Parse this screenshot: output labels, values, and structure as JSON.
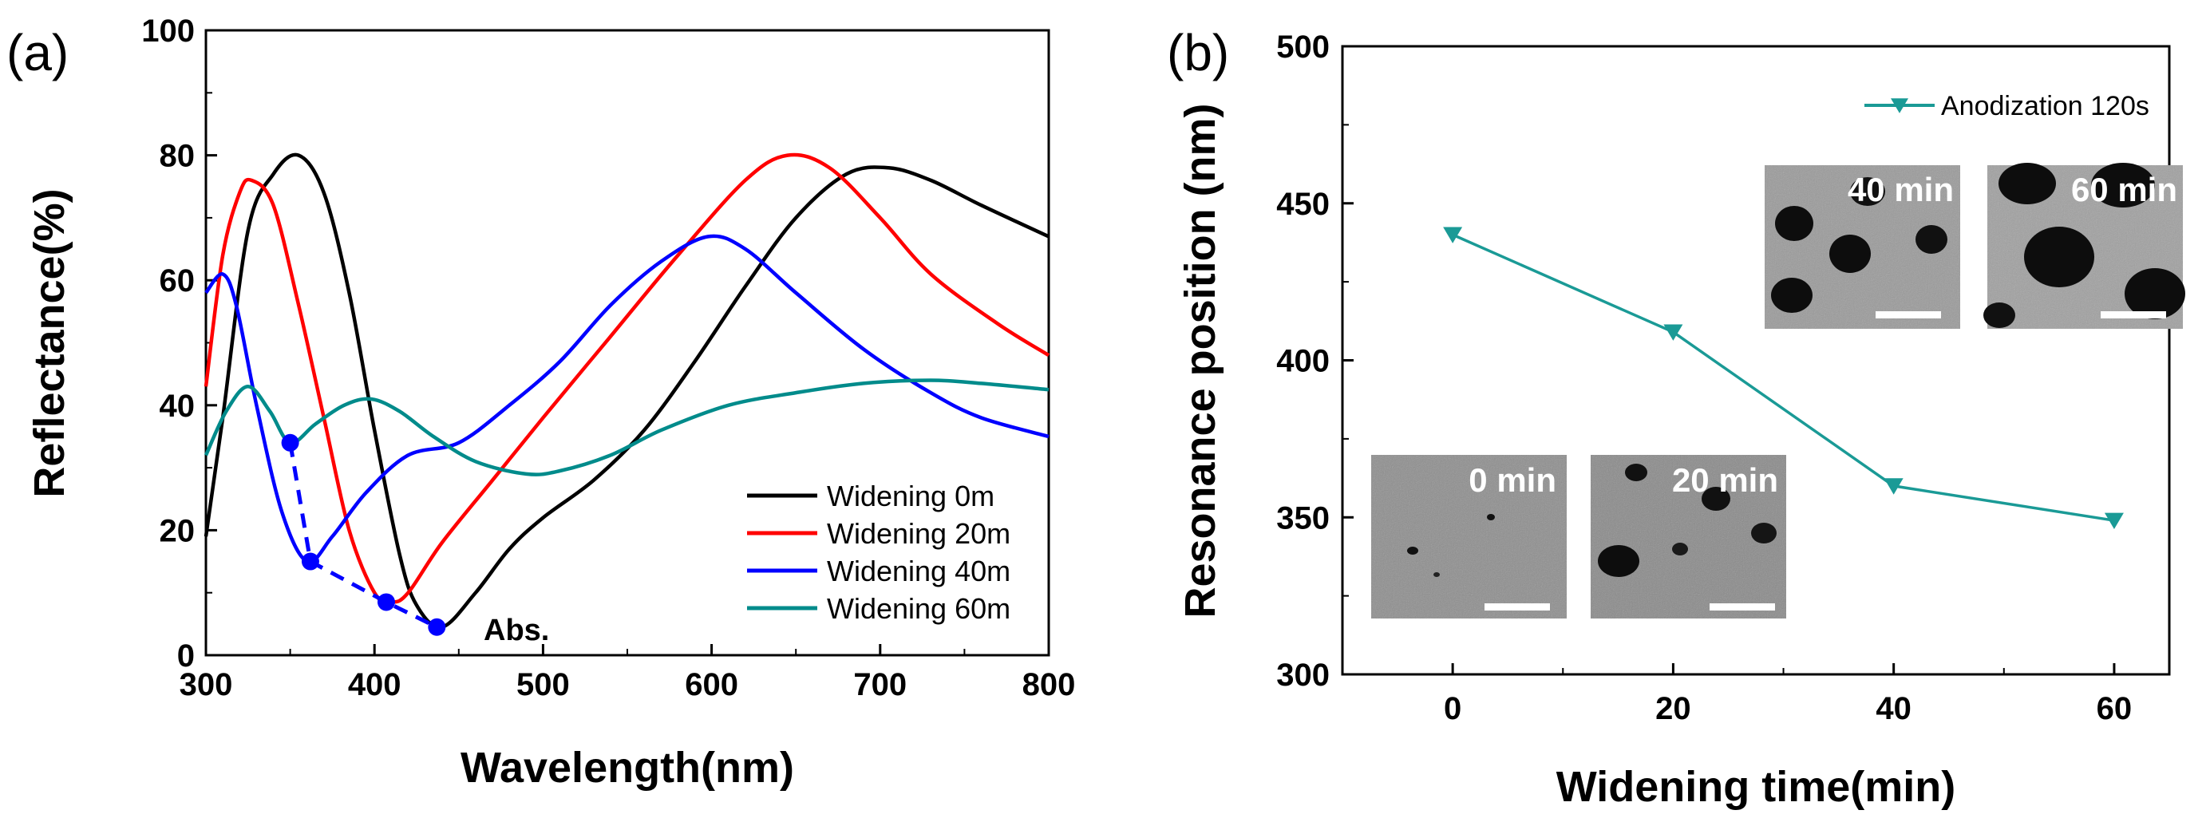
{
  "chart_data": [
    {
      "panel_label": "(a)",
      "type": "line",
      "xlabel": "Wavelength(nm)",
      "ylabel": "Reflectance(%)",
      "xlim": [
        300,
        800
      ],
      "ylim": [
        0,
        100
      ],
      "xticks": [
        300,
        400,
        500,
        600,
        700,
        800
      ],
      "yticks": [
        0,
        20,
        40,
        60,
        80,
        100
      ],
      "legend_position": "bottom-right",
      "series": [
        {
          "name": "Widening 0m",
          "color": "#000000",
          "x": [
            300,
            310,
            325,
            340,
            355,
            370,
            385,
            400,
            415,
            425,
            440,
            460,
            480,
            500,
            530,
            560,
            590,
            620,
            650,
            680,
            705,
            730,
            760,
            800
          ],
          "y": [
            19,
            38,
            68,
            77,
            80,
            74,
            58,
            36,
            16,
            8,
            4.5,
            10,
            17,
            22,
            28,
            36,
            47,
            59,
            70,
            77,
            78,
            76,
            72,
            67
          ]
        },
        {
          "name": "Widening 20m",
          "color": "#ff0000",
          "x": [
            300,
            310,
            320,
            327,
            340,
            355,
            370,
            385,
            400,
            410,
            420,
            440,
            470,
            500,
            540,
            580,
            620,
            645,
            670,
            700,
            730,
            770,
            800
          ],
          "y": [
            43,
            64,
            74,
            76,
            72,
            56,
            38,
            20,
            10,
            8.5,
            10,
            18,
            28,
            38,
            51,
            64,
            76,
            80,
            78,
            70,
            61,
            53,
            48
          ]
        },
        {
          "name": "Widening 40m",
          "color": "#0000ff",
          "x": [
            300,
            310,
            318,
            330,
            345,
            360,
            375,
            395,
            420,
            450,
            480,
            510,
            540,
            570,
            598,
            620,
            650,
            690,
            730,
            760,
            800
          ],
          "y": [
            58,
            61,
            56,
            40,
            23,
            15,
            19,
            26,
            32,
            34,
            40,
            47,
            56,
            63,
            67,
            65,
            58,
            49,
            42,
            38,
            35
          ]
        },
        {
          "name": "Widening 60m",
          "color": "#008b8b",
          "x": [
            300,
            312,
            325,
            338,
            350,
            365,
            382,
            398,
            415,
            435,
            460,
            490,
            510,
            540,
            570,
            610,
            650,
            690,
            730,
            760,
            800
          ],
          "y": [
            32,
            39,
            43,
            39,
            34,
            37,
            40,
            41,
            39,
            35,
            31,
            29,
            29.5,
            32,
            36,
            40,
            42,
            43.5,
            44,
            43.5,
            42.5
          ]
        }
      ],
      "absorption_markers": {
        "color": "#0000ff",
        "x": [
          350,
          362,
          407,
          437
        ],
        "y": [
          34,
          15,
          8.5,
          4.5
        ]
      },
      "annotations": [
        "Abs."
      ]
    },
    {
      "panel_label": "(b)",
      "type": "line",
      "xlabel": "Widening time(min)",
      "ylabel": "Resonance position (nm)",
      "xlim": [
        -10,
        65
      ],
      "ylim": [
        300,
        500
      ],
      "xticks": [
        0,
        20,
        40,
        60
      ],
      "yticks": [
        300,
        350,
        400,
        450,
        500
      ],
      "legend_position": "top-right",
      "series": [
        {
          "name": "Anodization 120s",
          "color": "#1a9a96",
          "marker": "triangle-down",
          "x": [
            0,
            20,
            40,
            60
          ],
          "y": [
            440,
            409,
            360,
            349
          ]
        }
      ],
      "inset_images": [
        {
          "label": "0 min"
        },
        {
          "label": "20 min"
        },
        {
          "label": "40 min"
        },
        {
          "label": "60 min"
        }
      ]
    }
  ]
}
